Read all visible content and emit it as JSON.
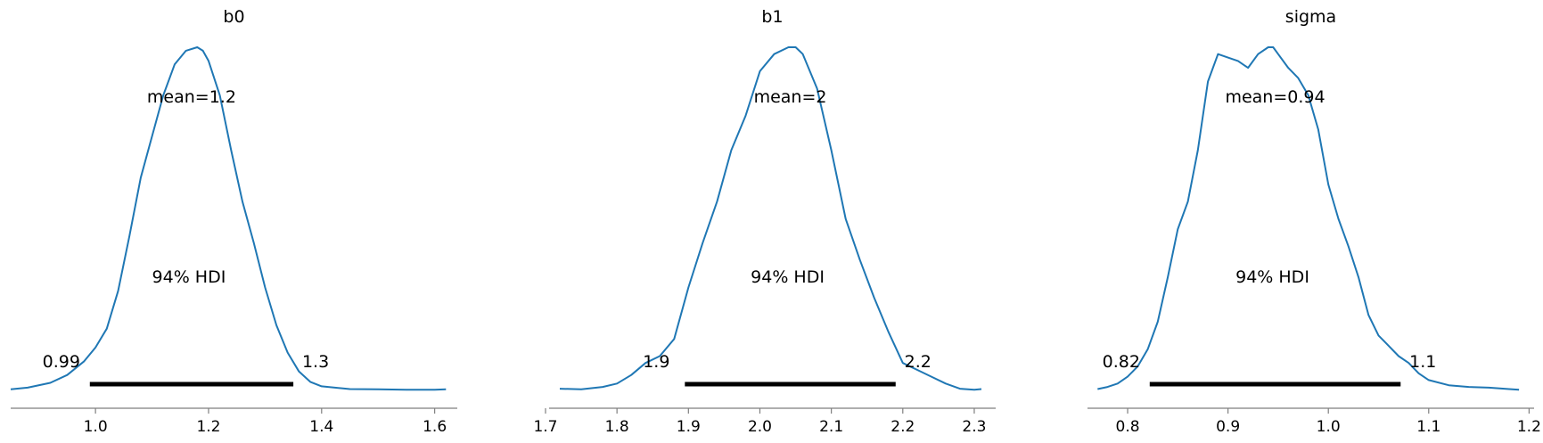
{
  "chart_data": [
    {
      "type": "line",
      "title": "b0",
      "xlim": [
        0.85,
        1.64
      ],
      "xticks": [
        1.0,
        1.2,
        1.4,
        1.6
      ],
      "tick_labels": [
        "1.0",
        "1.2",
        "1.4",
        "1.6"
      ],
      "mean_label": "mean=1.2",
      "hdi_label": "94% HDI",
      "hdi": {
        "low": 0.99,
        "high": 1.35,
        "low_label": "0.99",
        "high_label": "1.3"
      },
      "density": {
        "x": [
          0.85,
          0.88,
          0.92,
          0.95,
          0.98,
          1.0,
          1.02,
          1.04,
          1.06,
          1.08,
          1.1,
          1.12,
          1.14,
          1.16,
          1.18,
          1.19,
          1.2,
          1.22,
          1.24,
          1.26,
          1.28,
          1.3,
          1.32,
          1.34,
          1.36,
          1.38,
          1.4,
          1.45,
          1.5,
          1.55,
          1.6,
          1.62
        ],
        "y": [
          0.003,
          0.008,
          0.022,
          0.045,
          0.085,
          0.125,
          0.18,
          0.29,
          0.45,
          0.62,
          0.74,
          0.86,
          0.95,
          0.99,
          1.0,
          0.99,
          0.96,
          0.86,
          0.7,
          0.55,
          0.43,
          0.3,
          0.19,
          0.11,
          0.055,
          0.025,
          0.012,
          0.004,
          0.003,
          0.002,
          0.002,
          0.003
        ]
      }
    },
    {
      "type": "line",
      "title": "b1",
      "xlim": [
        1.705,
        2.33
      ],
      "xticks": [
        1.7,
        1.8,
        1.9,
        2.0,
        2.1,
        2.2,
        2.3
      ],
      "tick_labels": [
        "1.7",
        "1.8",
        "1.9",
        "2.0",
        "2.1",
        "2.2",
        "2.3"
      ],
      "mean_label": "mean=2",
      "hdi_label": "94% HDI",
      "hdi": {
        "low": 1.895,
        "high": 2.19,
        "low_label": "1.9",
        "high_label": "2.2"
      },
      "density": {
        "x": [
          1.72,
          1.75,
          1.78,
          1.8,
          1.82,
          1.84,
          1.86,
          1.88,
          1.9,
          1.92,
          1.94,
          1.96,
          1.98,
          2.0,
          2.02,
          2.04,
          2.05,
          2.06,
          2.08,
          2.1,
          2.12,
          2.14,
          2.16,
          2.18,
          2.2,
          2.22,
          2.24,
          2.26,
          2.28,
          2.3,
          2.31
        ],
        "y": [
          0.005,
          0.003,
          0.01,
          0.02,
          0.045,
          0.08,
          0.1,
          0.15,
          0.3,
          0.43,
          0.55,
          0.7,
          0.8,
          0.93,
          0.98,
          1.0,
          1.0,
          0.98,
          0.88,
          0.7,
          0.5,
          0.38,
          0.27,
          0.17,
          0.08,
          0.06,
          0.04,
          0.02,
          0.005,
          0.002,
          0.004
        ]
      }
    },
    {
      "type": "line",
      "title": "sigma",
      "xlim": [
        0.76,
        1.205
      ],
      "xticks": [
        0.8,
        0.9,
        1.0,
        1.1,
        1.2
      ],
      "tick_labels": [
        "0.8",
        "0.9",
        "1.0",
        "1.1",
        "1.2"
      ],
      "mean_label": "mean=0.94",
      "hdi_label": "94% HDI",
      "hdi": {
        "low": 0.822,
        "high": 1.072,
        "low_label": "0.82",
        "high_label": "1.1"
      },
      "density": {
        "x": [
          0.77,
          0.78,
          0.79,
          0.8,
          0.81,
          0.82,
          0.83,
          0.84,
          0.85,
          0.86,
          0.87,
          0.88,
          0.89,
          0.9,
          0.91,
          0.92,
          0.93,
          0.94,
          0.945,
          0.95,
          0.96,
          0.97,
          0.98,
          0.99,
          1.0,
          1.01,
          1.02,
          1.03,
          1.04,
          1.05,
          1.06,
          1.07,
          1.08,
          1.09,
          1.1,
          1.12,
          1.14,
          1.16,
          1.18,
          1.19
        ],
        "y": [
          0.004,
          0.01,
          0.02,
          0.04,
          0.07,
          0.12,
          0.2,
          0.33,
          0.47,
          0.55,
          0.7,
          0.9,
          0.98,
          0.97,
          0.96,
          0.94,
          0.98,
          1.0,
          1.0,
          0.98,
          0.94,
          0.91,
          0.86,
          0.76,
          0.6,
          0.5,
          0.42,
          0.33,
          0.22,
          0.16,
          0.13,
          0.1,
          0.08,
          0.05,
          0.03,
          0.015,
          0.01,
          0.008,
          0.004,
          0.002
        ]
      }
    }
  ]
}
